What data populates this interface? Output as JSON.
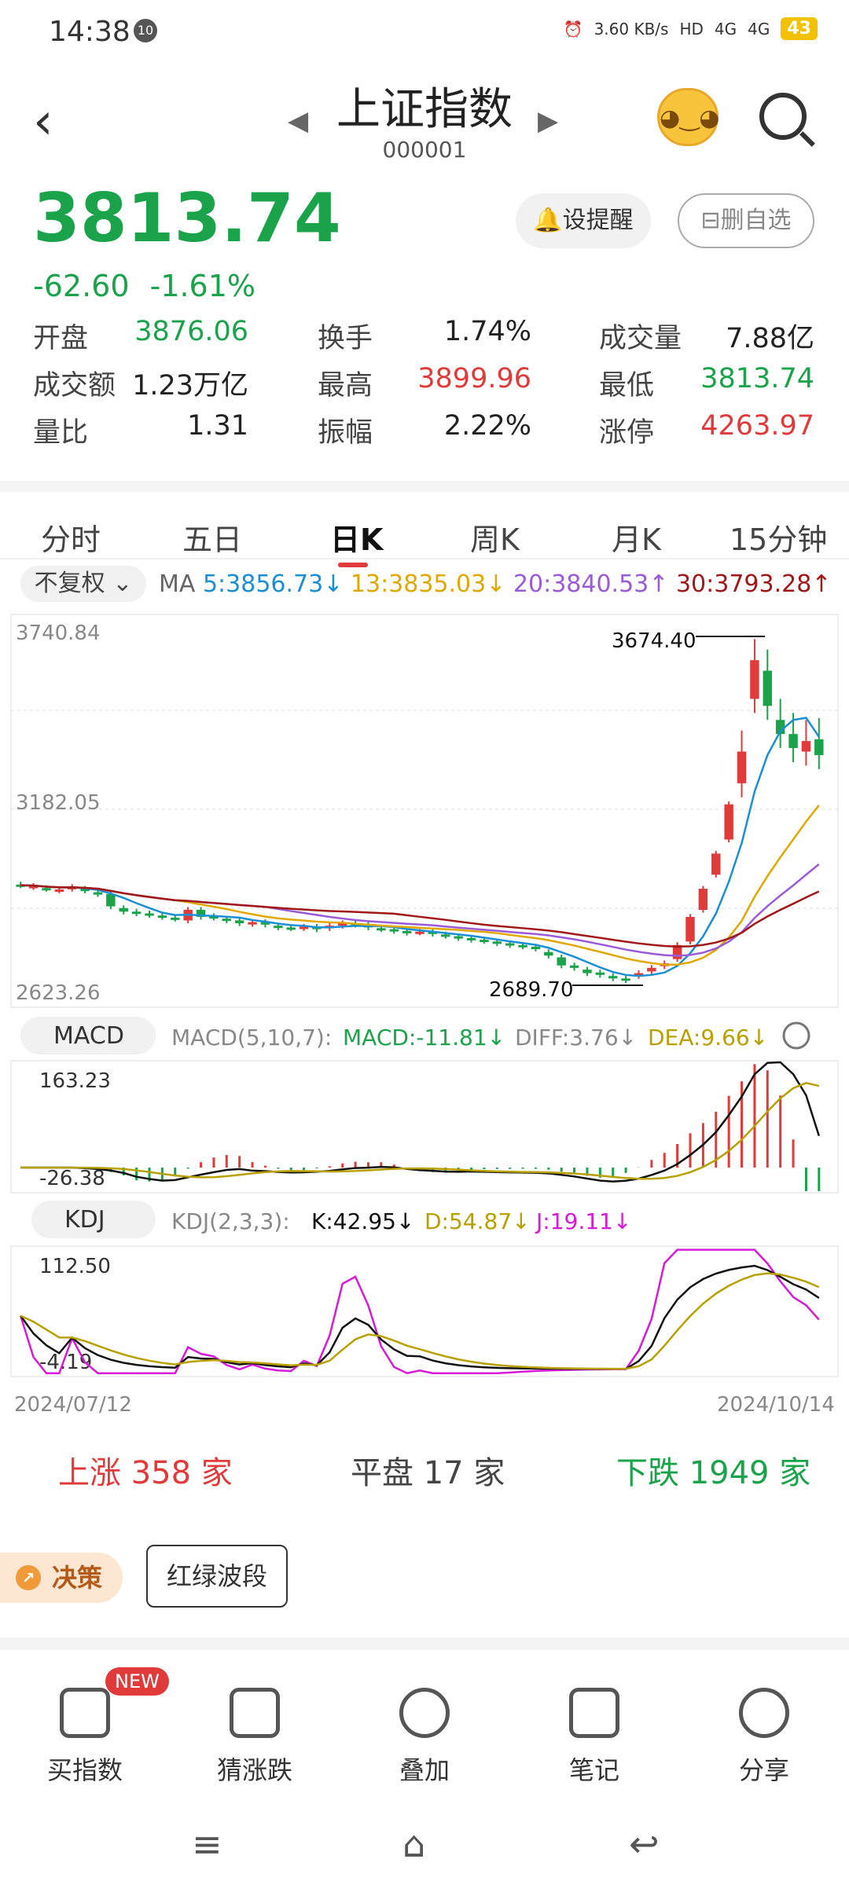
{
  "status_bar": {
    "time": "14:38",
    "notif": "10",
    "speed": "3.60 KB/s",
    "hd": "HD",
    "net1": "4G",
    "net2": "4G",
    "battery": "43"
  },
  "header": {
    "title": "上证指数",
    "code": "000001"
  },
  "quote": {
    "price": "3813.74",
    "change": "-62.60",
    "change_pct": "-1.61%",
    "alert_label": "设提醒",
    "fav_label": "删自选",
    "stats": [
      [
        {
          "k": "开盘",
          "v": "3876.06",
          "c": "green"
        },
        {
          "k": "换手",
          "v": "1.74%",
          "c": "dark"
        },
        {
          "k": "成交量",
          "v": "7.88亿",
          "c": "dark"
        }
      ],
      [
        {
          "k": "成交额",
          "v": "1.23万亿",
          "c": "dark"
        },
        {
          "k": "最高",
          "v": "3899.96",
          "c": "red"
        },
        {
          "k": "最低",
          "v": "3813.74",
          "c": "green"
        }
      ],
      [
        {
          "k": "量比",
          "v": "1.31",
          "c": "dark"
        },
        {
          "k": "振幅",
          "v": "2.22%",
          "c": "dark"
        },
        {
          "k": "涨停",
          "v": "4263.97",
          "c": "red"
        }
      ]
    ]
  },
  "tabs": [
    "分时",
    "五日",
    "日K",
    "周K",
    "月K",
    "15分钟"
  ],
  "active_tab": "日K",
  "ma": {
    "adjust": "不复权",
    "label": "MA",
    "ma5": "5:3856.73↓",
    "ma13": "13:3835.03↓",
    "ma20": "20:3840.53↑",
    "ma30": "30:3793.28↑"
  },
  "chart_data": {
    "type": "candlestick",
    "y_top": "3740.84",
    "y_mid": "3182.05",
    "y_bottom": "2623.26",
    "high_label": "3674.40",
    "low_label": "2689.70",
    "date_start": "2024/07/12",
    "date_end": "2024/10/14",
    "macd": {
      "name": "MACD",
      "params": "MACD(5,10,7):",
      "macd": "MACD:-11.81↓",
      "diff": "DIFF:3.76↓",
      "dea": "DEA:9.66↓",
      "top": "163.23",
      "bottom": "-26.38"
    },
    "kdj": {
      "name": "KDJ",
      "params": "KDJ(2,3,3):",
      "k": "K:42.95↓",
      "d": "D:54.87↓",
      "j": "J:19.11↓",
      "top": "112.50",
      "bottom": "-4.19"
    },
    "closes": [
      2970,
      2968,
      2960,
      2958,
      2965,
      2955,
      2945,
      2910,
      2895,
      2890,
      2886,
      2880,
      2875,
      2900,
      2880,
      2878,
      2870,
      2862,
      2865,
      2858,
      2850,
      2848,
      2852,
      2845,
      2855,
      2862,
      2858,
      2850,
      2845,
      2840,
      2835,
      2838,
      2832,
      2826,
      2820,
      2815,
      2812,
      2805,
      2800,
      2796,
      2790,
      2770,
      2742,
      2735,
      2720,
      2715,
      2705,
      2700,
      2720,
      2735,
      2748,
      2800,
      2880,
      2960,
      3060,
      3200,
      3350,
      3610,
      3480,
      3400,
      3360,
      3380,
      3340
    ],
    "opens": [
      2972,
      2965,
      2962,
      2955,
      2960,
      2960,
      2950,
      2945,
      2905,
      2895,
      2890,
      2884,
      2878,
      2870,
      2900,
      2882,
      2875,
      2870,
      2860,
      2865,
      2855,
      2850,
      2848,
      2852,
      2848,
      2855,
      2862,
      2858,
      2848,
      2845,
      2840,
      2836,
      2838,
      2830,
      2825,
      2820,
      2815,
      2810,
      2805,
      2800,
      2795,
      2780,
      2765,
      2742,
      2730,
      2722,
      2712,
      2705,
      2712,
      2725,
      2740,
      2760,
      2810,
      2900,
      3000,
      3100,
      3260,
      3500,
      3580,
      3440,
      3400,
      3350,
      3385
    ]
  },
  "breadth": {
    "up": "上涨 358 家",
    "flat": "平盘 17 家",
    "down": "下跌 1949 家"
  },
  "tools": {
    "decision": "决策",
    "wave": "红绿波段"
  },
  "actions": [
    {
      "label": "买指数",
      "icon": "bar-chart-icon"
    },
    {
      "label": "猜涨跌",
      "icon": "updown-icon"
    },
    {
      "label": "叠加",
      "icon": "layers-icon"
    },
    {
      "label": "笔记",
      "icon": "note-icon"
    },
    {
      "label": "分享",
      "icon": "share-icon"
    }
  ],
  "new_badge": "NEW",
  "nav": {
    "menu": "≡",
    "home": "⌂",
    "back": "↩"
  }
}
